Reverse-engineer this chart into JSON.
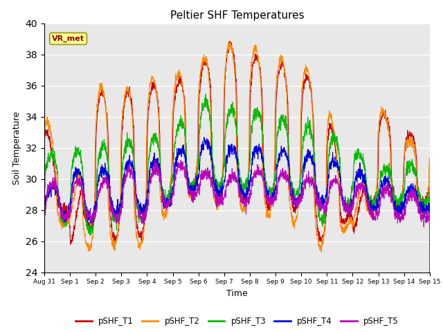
{
  "title": "Peltier SHF Temperatures",
  "xlabel": "Time",
  "ylabel": "Soil Temperature",
  "ylim": [
    24,
    40
  ],
  "yticks": [
    24,
    26,
    28,
    30,
    32,
    34,
    36,
    38,
    40
  ],
  "colors": {
    "T1": "#CC0000",
    "T2": "#FF8C00",
    "T3": "#00BB00",
    "T4": "#0000DD",
    "T5": "#BB00BB"
  },
  "legend_labels": [
    "pSHF_T1",
    "pSHF_T2",
    "pSHF_T3",
    "pSHF_T4",
    "pSHF_T5"
  ],
  "annotation_text": "VR_met",
  "annotation_box_color": "#FFFF99",
  "annotation_text_color": "#8B0000",
  "background_color": "#E8E8E8",
  "xtick_labels": [
    "Aug 31",
    "Sep 1",
    "Sep 2",
    "Sep 3",
    "Sep 4",
    "Sep 5",
    "Sep 6",
    "Sep 7",
    "Sep 8",
    "Sep 9",
    "Sep 10",
    "Sep 11",
    "Sep 12",
    "Sep 13",
    "Sep 14",
    "Sep 15"
  ],
  "n_days": 15,
  "points_per_day": 144
}
